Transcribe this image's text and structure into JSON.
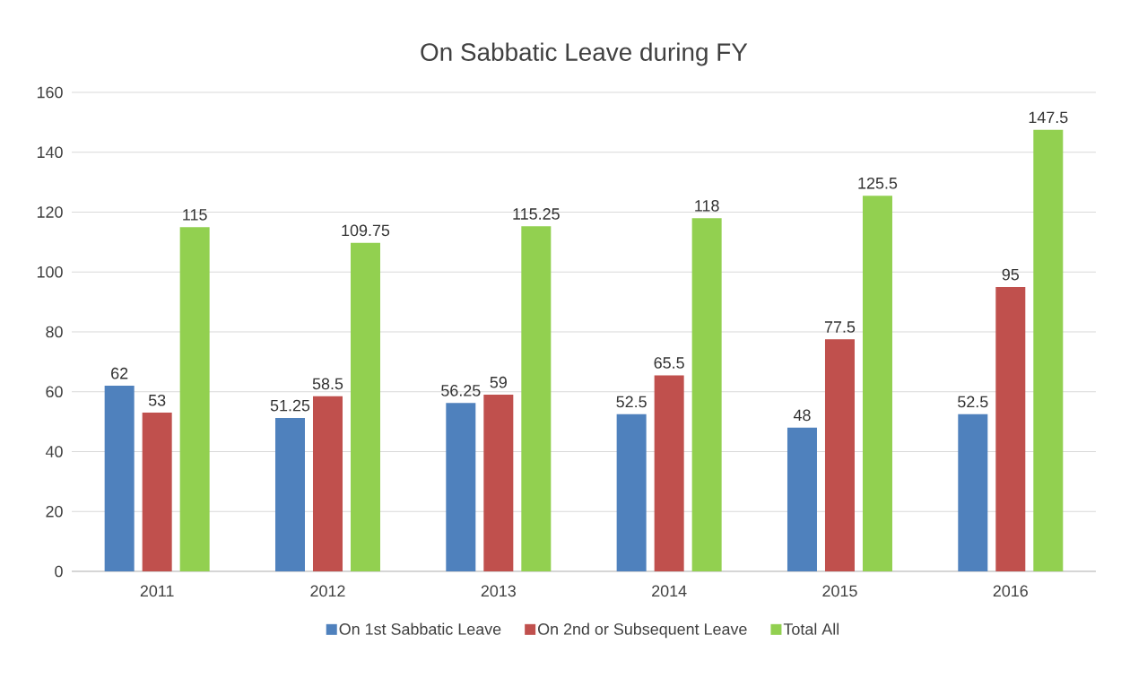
{
  "chart_data": {
    "type": "bar",
    "title": "On Sabbatic Leave during FY",
    "categories": [
      "2011",
      "2012",
      "2013",
      "2014",
      "2015",
      "2016"
    ],
    "series": [
      {
        "name": "On 1st Sabbatic Leave",
        "color": "#4f81bd",
        "values": [
          62,
          51.25,
          56.25,
          52.5,
          48,
          52.5
        ]
      },
      {
        "name": "On 2nd or Subsequent Leave",
        "color": "#c0504d",
        "values": [
          53,
          58.5,
          59,
          65.5,
          77.5,
          95
        ]
      },
      {
        "name": "Total All",
        "color": "#92d050",
        "values": [
          115,
          109.75,
          115.25,
          118,
          125.5,
          147.5
        ]
      }
    ],
    "ylim": [
      0,
      160
    ],
    "yticks": [
      0,
      20,
      40,
      60,
      80,
      100,
      120,
      140,
      160
    ],
    "grid": "y",
    "legend": "bottom",
    "data_labels": true
  }
}
